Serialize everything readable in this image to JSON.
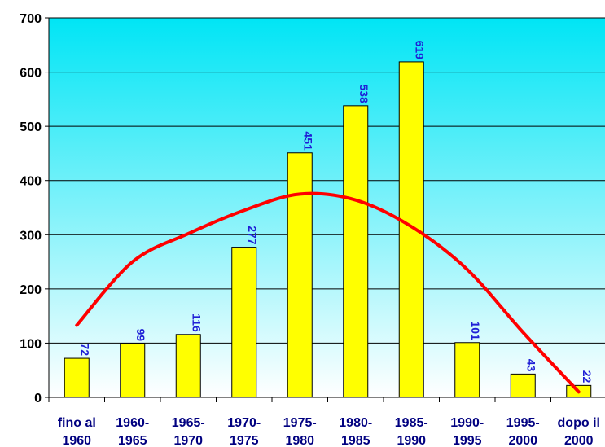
{
  "chart_data": {
    "type": "bar",
    "title": "",
    "xlabel": "",
    "ylabel": "",
    "ylim": [
      0,
      700
    ],
    "yticks": [
      0,
      100,
      200,
      300,
      400,
      500,
      600,
      700
    ],
    "grid": true,
    "legend": "none",
    "categories": [
      [
        "fino al",
        "1960"
      ],
      [
        "1960-",
        "1965"
      ],
      [
        "1965-",
        "1970"
      ],
      [
        "1970-",
        "1975"
      ],
      [
        "1975-",
        "1980"
      ],
      [
        "1980-",
        "1985"
      ],
      [
        "1985-",
        "1990"
      ],
      [
        "1990-",
        "1995"
      ],
      [
        "1995-",
        "2000"
      ],
      [
        "dopo il",
        "2000"
      ]
    ],
    "series": [
      {
        "type": "bar",
        "values": [
          72,
          99,
          116,
          277,
          451,
          538,
          619,
          101,
          43,
          22
        ],
        "color": "#ffff00"
      },
      {
        "type": "line",
        "values": [
          133,
          250,
          302,
          345,
          375,
          364,
          315,
          236,
          120,
          10
        ],
        "color": "#ff0000"
      }
    ],
    "colors": {
      "plot_gradient_top": "#00e5f5",
      "plot_gradient_bottom": "#ffffff",
      "bar_fill": "#ffff00",
      "bar_stroke": "#000000",
      "trend_line": "#ff0000",
      "data_label": "#1f1fd6",
      "x_label": "#000080"
    }
  }
}
